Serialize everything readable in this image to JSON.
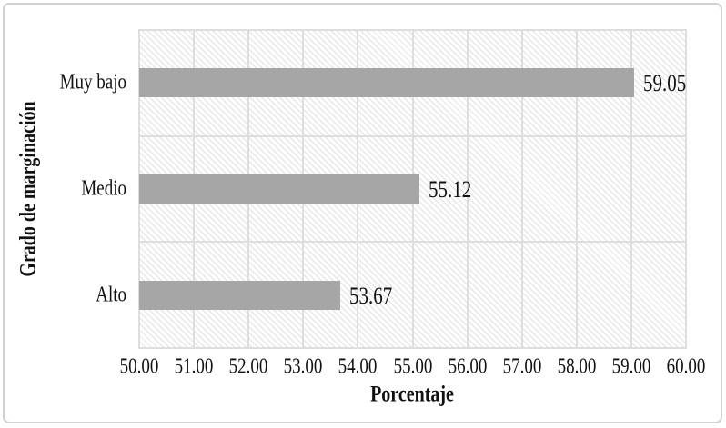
{
  "chart_data": {
    "type": "bar",
    "orientation": "horizontal",
    "title": "",
    "categories": [
      "Muy bajo",
      "Medio",
      "Alto"
    ],
    "values": [
      59.05,
      55.12,
      53.67
    ],
    "value_labels": [
      "59.05",
      "55.12",
      "53.67"
    ],
    "xlabel": "Porcentaje",
    "ylabel": "Grado de marginación",
    "xlim": [
      50,
      60
    ],
    "xticks": [
      "50.00",
      "51.00",
      "52.00",
      "53.00",
      "54.00",
      "55.00",
      "56.00",
      "57.00",
      "58.00",
      "59.00",
      "60.00"
    ],
    "grid": true,
    "legend": "none",
    "bar_color": "#a6a6a6",
    "gridline_color": "#dedede",
    "plot_background": "light-downward-diagonal-hatch",
    "hatch_color": "#e7e7e7",
    "frame_border_color": "#d2d2d2",
    "text_color": "#111111"
  }
}
